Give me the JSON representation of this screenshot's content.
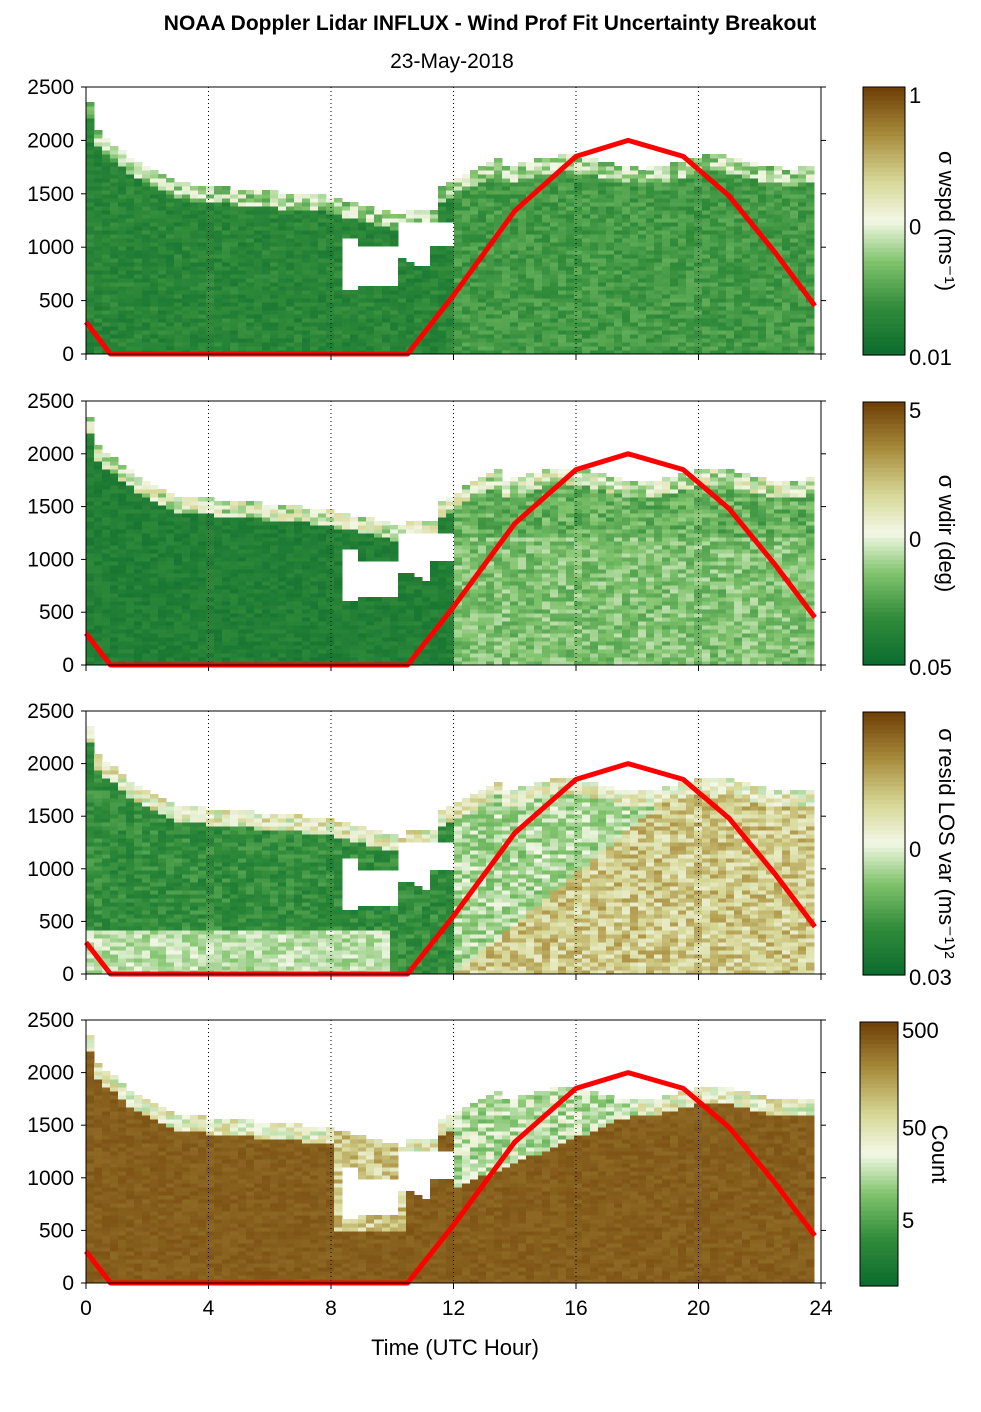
{
  "title": "NOAA Doppler Lidar INFLUX - Wind Prof Fit Uncertainty Breakout",
  "subtitle": "23-May-2018",
  "colors": {
    "low": "#0b6b2e",
    "mid": "#f3f8e6",
    "high": "#6e3e06",
    "sun_curve": "#ff0000"
  },
  "chart_data": [
    {
      "type": "heatmap",
      "name": "σ wspd (ms-1)",
      "xlim": [
        0,
        24
      ],
      "ylim": [
        0,
        2500
      ],
      "x_ticks": [
        "0",
        "4",
        "8",
        "12",
        "16",
        "20",
        "24"
      ],
      "y_ticks": [
        "0",
        "500",
        "1000",
        "1500",
        "2000",
        "2500"
      ],
      "colorbar_label": "σ wspd (ms⁻¹)",
      "colorbar_ticks": [
        "1",
        "0",
        "0.01"
      ],
      "colorbar_scale": "log",
      "grid": "dotted vertical"
    },
    {
      "type": "heatmap",
      "name": "σ wdir (deg)",
      "xlim": [
        0,
        24
      ],
      "ylim": [
        0,
        2500
      ],
      "x_ticks": [
        "0",
        "4",
        "8",
        "12",
        "16",
        "20",
        "24"
      ],
      "y_ticks": [
        "0",
        "500",
        "1000",
        "1500",
        "2000",
        "2500"
      ],
      "colorbar_label": "σ wdir (deg)",
      "colorbar_ticks": [
        "5",
        "0",
        "0.05"
      ],
      "colorbar_scale": "log",
      "grid": "dotted vertical"
    },
    {
      "type": "heatmap",
      "name": "σ resid LOS var (ms-1)2",
      "xlim": [
        0,
        24
      ],
      "ylim": [
        0,
        2500
      ],
      "x_ticks": [
        "0",
        "4",
        "8",
        "12",
        "16",
        "20",
        "24"
      ],
      "y_ticks": [
        "0",
        "500",
        "1000",
        "1500",
        "2000",
        "2500"
      ],
      "colorbar_label": "σ resid LOS var (ms⁻¹)²",
      "colorbar_ticks": [
        "0",
        "0.03"
      ],
      "colorbar_scale": "log",
      "grid": "dotted vertical"
    },
    {
      "type": "heatmap",
      "name": "Count",
      "xlim": [
        0,
        24
      ],
      "ylim": [
        0,
        2500
      ],
      "x_ticks": [
        "0",
        "4",
        "8",
        "12",
        "16",
        "20",
        "24"
      ],
      "y_ticks": [
        "0",
        "500",
        "1000",
        "1500",
        "2000",
        "2500"
      ],
      "xlabel": "Time (UTC Hour)",
      "colorbar_label": "Count",
      "colorbar_ticks": [
        "500",
        "50",
        "5"
      ],
      "colorbar_scale": "log",
      "grid": "dotted vertical"
    }
  ],
  "sun_curve": {
    "x": [
      0,
      0.8,
      10.5,
      12,
      14,
      16,
      17.7,
      19.5,
      21,
      22.5,
      23.8
    ],
    "y": [
      300,
      0,
      0,
      550,
      1340,
      1850,
      2000,
      1850,
      1480,
      950,
      450
    ]
  }
}
